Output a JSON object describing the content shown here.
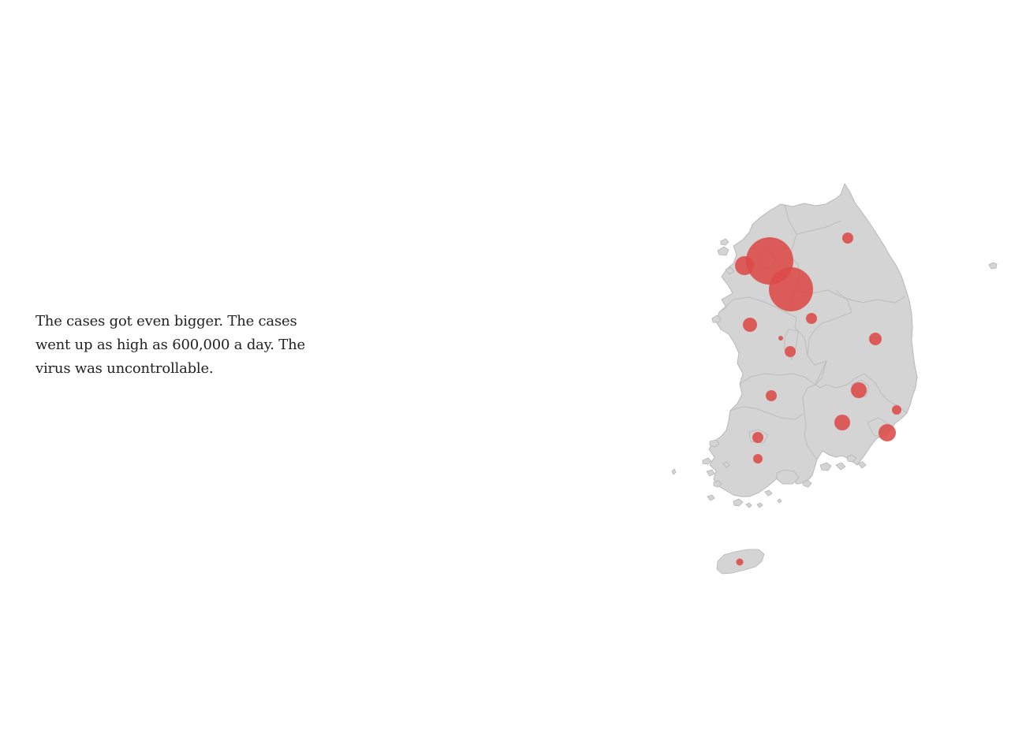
{
  "story": {
    "text": "The cases got even bigger. The cases went up as high as 600,000 a day. The virus was uncontrollable."
  },
  "map": {
    "region_fill": "#d4d4d4",
    "region_stroke": "#b8b8b8",
    "bubble_color": "#dc4a48"
  }
}
